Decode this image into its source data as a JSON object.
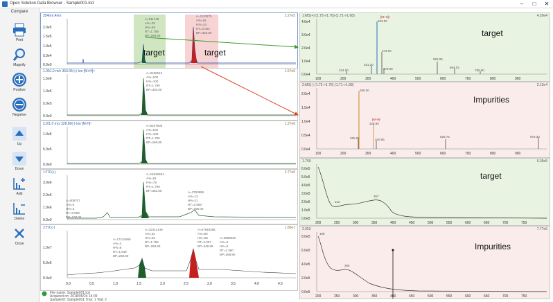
{
  "window": {
    "title": "Open Solution Data Browser - Sample001.lcd",
    "minimize": "–",
    "maximize": "□",
    "close": "✕"
  },
  "toolbar": {
    "compare": "Compare",
    "buttons": [
      {
        "label": "Print",
        "icon": "printer-icon"
      },
      {
        "label": "Magnify",
        "icon": "magnifier-icon"
      },
      {
        "label": "Positive",
        "icon": "plus-circle-icon"
      },
      {
        "label": "Negative",
        "icon": "minus-circle-icon"
      },
      {
        "label": "Up",
        "icon": "arrow-up-icon"
      },
      {
        "label": "Down",
        "icon": "arrow-down-icon"
      },
      {
        "label": "Add",
        "icon": "add-chart-icon"
      },
      {
        "label": "Delete",
        "icon": "delete-chart-icon"
      },
      {
        "label": "Close",
        "icon": "close-x-icon"
      }
    ]
  },
  "chromatograms": [
    {
      "header": "254nm,4nm",
      "max": "2.27e5",
      "yticks": [
        "0.0e0",
        "5.0e4",
        "1.0e5",
        "1.5e5",
        "2.0e5"
      ],
      "peak_labels": [
        {
          "lines": [
            "A=511745",
            "A%=29",
            "H%=59",
            "RT=1.759",
            "BP=268.80"
          ]
        },
        {
          "lines": [
            "A=1110875",
            "A%=64",
            "H%=24",
            "RT=2.053",
            "BP=355.80"
          ]
        }
      ]
    },
    {
      "header": "1.051.0 m/z 353.05(+) Ion [M+H]+",
      "max": "1.57e6",
      "yticks": [
        "0.0e0",
        "5.0e5",
        "1.0e6",
        "1.5e6"
      ],
      "peak_labels": [
        {
          "lines": [
            "A=9450513",
            "A%=100",
            "H%=100",
            "RT=1.790",
            "BP=353.00"
          ]
        }
      ]
    },
    {
      "header": "2.0/1.0 m/z 328.80(-) Ion [M-H]-",
      "max": "1.27e6",
      "yticks": [
        "0.0e0",
        "5.0e5",
        "1.0e6"
      ],
      "peak_labels": [
        {
          "lines": [
            "A=5207508",
            "A%=100",
            "H%=100",
            "RT=1.755",
            "BP=268.80"
          ]
        }
      ]
    },
    {
      "header": "1:TIC(+)",
      "max": "3.77e6",
      "yticks": [
        "0.0e0",
        "1.0e6",
        "2.0e6",
        "3.0e6"
      ],
      "peak_labels": [
        {
          "lines": [
            "A=508707",
            "A%=6",
            "H%=4",
            "RT=0.908",
            "BP=100.05"
          ]
        },
        {
          "lines": [
            "A=16316824",
            "A%=81",
            "H%=79",
            "RT=1.790",
            "BP=353.00"
          ]
        },
        {
          "lines": [
            "A=2750885",
            "A%=13",
            "H%=11",
            "RT=2.908",
            "BP=296.00"
          ]
        }
      ]
    },
    {
      "header": "2:TIC(-)",
      "max": "1.86e7",
      "yticks": [
        "0.0e0",
        "5.0e6",
        "1.0e7"
      ],
      "xticks": [
        "0.0",
        "0.5",
        "1.0",
        "1.5",
        "2.0",
        "2.5",
        "3.0",
        "3.5",
        "4.0",
        "4.5"
      ],
      "peak_labels": [
        {
          "lines": [
            "A=17141865",
            "A%=3",
            "H%=8",
            "RT=1.649",
            "BP=268.00"
          ]
        },
        {
          "lines": [
            "A=22412149",
            "A%=32",
            "H%=25",
            "RT=1.765",
            "BP=268.80"
          ]
        },
        {
          "lines": [
            "A=67649286",
            "A%=80",
            "H%=66",
            "RT=2.057",
            "BP=349.85"
          ]
        },
        {
          "lines": [
            "A=2880620",
            "A%=3",
            "H%=5",
            "RT=3.360",
            "BP=268.80"
          ]
        }
      ]
    }
  ],
  "spectra": [
    {
      "header": "1:MS(+) (1.75->1.76)-(1.71->1.68)",
      "max": "4.20e4",
      "yticks": [
        "0.0e4",
        "1.0e4",
        "2.0e4",
        "3.0e4",
        "4.0e4"
      ],
      "xticks": [
        "100",
        "200",
        "300",
        "400",
        "500",
        "600",
        "700",
        "800",
        "900"
      ],
      "tag": "[M+H]+",
      "peaks": [
        "353.00",
        "373.00",
        "331.20",
        "224.00",
        "378.05",
        "593.05",
        "664.02",
        "765.90"
      ],
      "annotation": "target",
      "bg": "#e8f3e2"
    },
    {
      "header": "2:MS(-) (1.75->1.76)-(1.71->1.68)",
      "max": "2.13e4",
      "yticks": [
        "0.0e4",
        "0.5e4",
        "1.0e4",
        "1.5e4",
        "2.0e4"
      ],
      "xticks": [
        "100",
        "200",
        "300",
        "400",
        "500",
        "600",
        "700",
        "800",
        "900"
      ],
      "tag": "[M-H]-",
      "peaks": [
        "268.00",
        "328.90",
        "265.95",
        "340.95",
        "626.75",
        "976.30"
      ],
      "annotation": "Impurities",
      "bg": "#fbecec"
    },
    {
      "header": "1.759",
      "max": "6.39e5",
      "yticks": [
        "0.0e5",
        "1.0e5",
        "2.0e5",
        "3.0e5",
        "4.0e5",
        "5.0e5",
        "6.0e5"
      ],
      "xticks": [
        "200",
        "250",
        "300",
        "350",
        "400",
        "450",
        "500",
        "550",
        "600",
        "650",
        "700",
        "750"
      ],
      "peaks": [
        "242",
        "357"
      ],
      "annotation": "target",
      "bg": "#e8f3e2"
    },
    {
      "header": "2.053",
      "max": "7.77e5",
      "yticks": [
        "0.0e5",
        "2.0e5",
        "4.0e5",
        "6.0e5",
        "8.0e5"
      ],
      "xticks": [
        "200",
        "250",
        "300",
        "350",
        "400",
        "450",
        "500",
        "550",
        "600",
        "650",
        "700",
        "750"
      ],
      "peaks": [
        "199",
        "266"
      ],
      "annotation": "Impurities",
      "bg": "#fbecec"
    }
  ],
  "annotations": {
    "target_a": "target",
    "target_b": "target"
  },
  "footer": {
    "file_name": "File name:  Sample001.lcd",
    "acquired": "Acquired on:  2018/05/24 15:09",
    "sample": "SampleID:  Sample001    Tray: 1    Vial: 2"
  },
  "colors": {
    "green_band": "#cfe6c0",
    "red_band": "#f7d3d3",
    "green_peak": "#1e5e2e",
    "red_peak": "#c41f1f",
    "arrow_green": "#3a9a2a",
    "arrow_red": "#e0402a"
  }
}
